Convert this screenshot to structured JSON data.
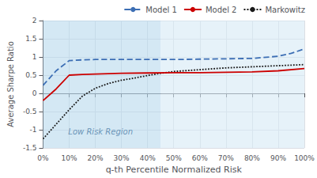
{
  "chart_data": {
    "type": "line",
    "xlabel": "q-th Percentile Normalized Risk",
    "ylabel": "Average Sharpe Ratio",
    "xlim": [
      0.0,
      1.0
    ],
    "ylim": [
      -1.5,
      2.0
    ],
    "xticks": [
      {
        "value": 0.0,
        "label": "0%"
      },
      {
        "value": 0.1,
        "label": "10%"
      },
      {
        "value": 0.2,
        "label": "20%"
      },
      {
        "value": 0.3,
        "label": "30%"
      },
      {
        "value": 0.4,
        "label": "40%"
      },
      {
        "value": 0.5,
        "label": "50%"
      },
      {
        "value": 0.6,
        "label": "60%"
      },
      {
        "value": 0.7,
        "label": "70%"
      },
      {
        "value": 0.8,
        "label": "80%"
      },
      {
        "value": 0.9,
        "label": "90%"
      },
      {
        "value": 1.0,
        "label": "100%"
      }
    ],
    "yticks": [
      -1.5,
      -1,
      -0.5,
      0,
      0.5,
      1,
      1.5,
      2
    ],
    "grid": true,
    "legend": "upper right",
    "regions": [
      {
        "x": [
          0.0,
          0.45
        ],
        "color": "#b8d8ed"
      },
      {
        "x": [
          0.45,
          1.0
        ],
        "color": "#d5eaf5"
      }
    ],
    "annotations": [
      {
        "text": "Low Risk Region",
        "x": 0.22,
        "y": -1.05,
        "color": "#4d7ea8"
      }
    ],
    "series": [
      {
        "name": "Model 1",
        "color": "#3c6eb4",
        "line_style": "dashed",
        "x": [
          0.0,
          0.05,
          0.1,
          0.15,
          0.2,
          0.3,
          0.4,
          0.45,
          0.5,
          0.6,
          0.7,
          0.8,
          0.9,
          0.95,
          1.0
        ],
        "values": [
          0.22,
          0.62,
          0.9,
          0.92,
          0.93,
          0.93,
          0.93,
          0.93,
          0.93,
          0.94,
          0.95,
          0.96,
          1.02,
          1.1,
          1.22
        ]
      },
      {
        "name": "Model 2",
        "color": "#cc0000",
        "line_style": "solid",
        "x": [
          0.0,
          0.05,
          0.1,
          0.15,
          0.2,
          0.3,
          0.4,
          0.5,
          0.6,
          0.7,
          0.8,
          0.9,
          1.0
        ],
        "values": [
          -0.2,
          0.12,
          0.5,
          0.52,
          0.53,
          0.55,
          0.56,
          0.57,
          0.57,
          0.58,
          0.59,
          0.62,
          0.68
        ]
      },
      {
        "name": "Markowitz",
        "color": "#1a1a1a",
        "line_style": "dotted",
        "x": [
          0.0,
          0.05,
          0.1,
          0.15,
          0.2,
          0.25,
          0.3,
          0.35,
          0.4,
          0.45,
          0.5,
          0.6,
          0.7,
          0.8,
          0.9,
          1.0
        ],
        "values": [
          -1.25,
          -0.85,
          -0.45,
          -0.08,
          0.14,
          0.27,
          0.36,
          0.42,
          0.49,
          0.55,
          0.6,
          0.65,
          0.7,
          0.73,
          0.76,
          0.79
        ]
      }
    ]
  }
}
